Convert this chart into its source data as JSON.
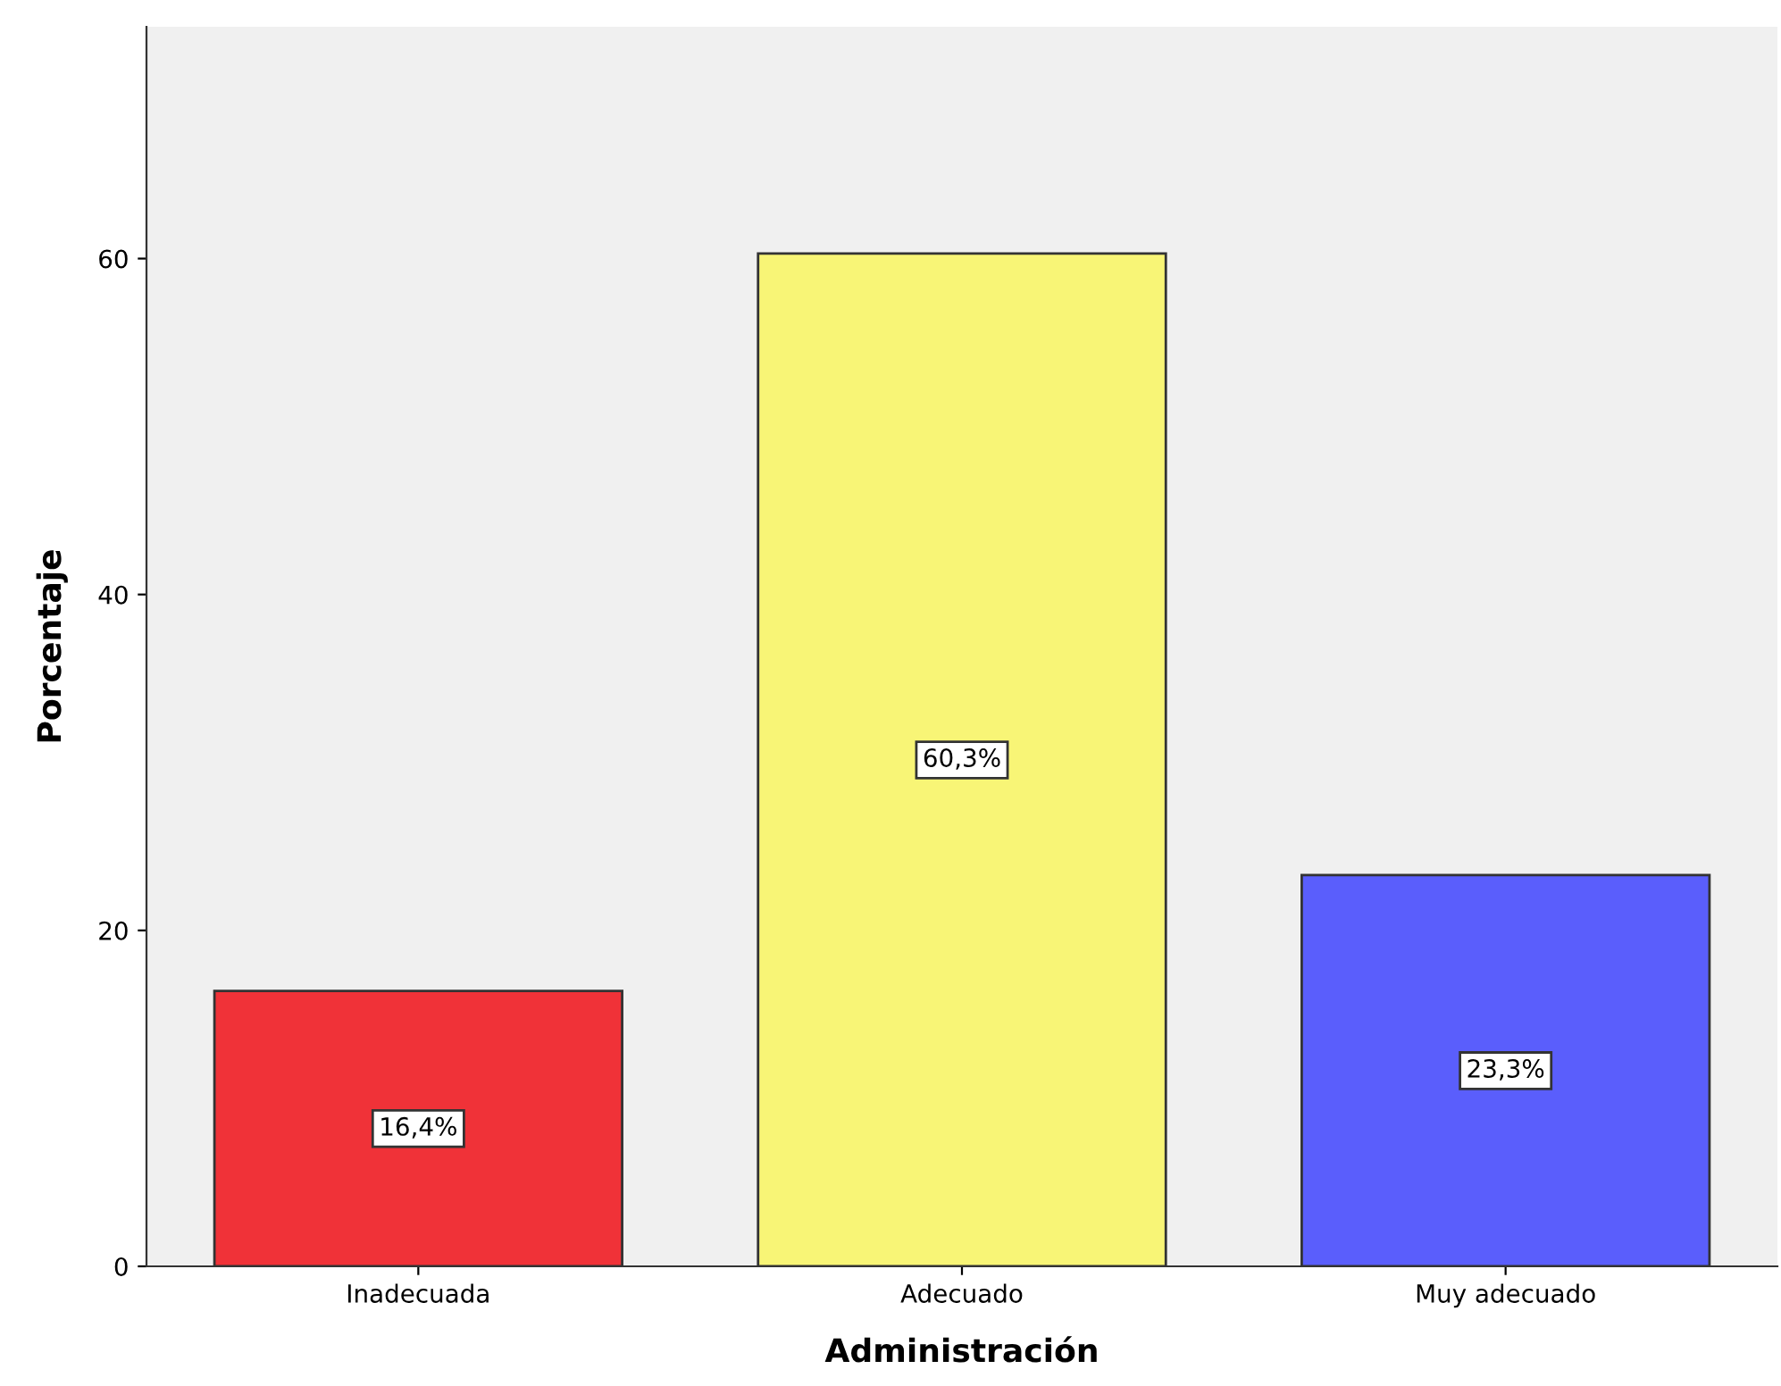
{
  "chart_data": {
    "type": "bar",
    "xlabel": "Administración",
    "ylabel": "Porcentaje",
    "categories": [
      "Inadecuada",
      "Adecuado",
      "Muy adecuado"
    ],
    "values": [
      16.4,
      60.3,
      23.3
    ],
    "colors": [
      "#f03238",
      "#f8f576",
      "#5a5efc"
    ],
    "value_labels": [
      "16,4%",
      "60,3%",
      "23,3%"
    ],
    "ylim": [
      0,
      73.8
    ],
    "yticks": [
      0,
      20,
      40,
      60
    ],
    "grid": false,
    "legend": false
  }
}
